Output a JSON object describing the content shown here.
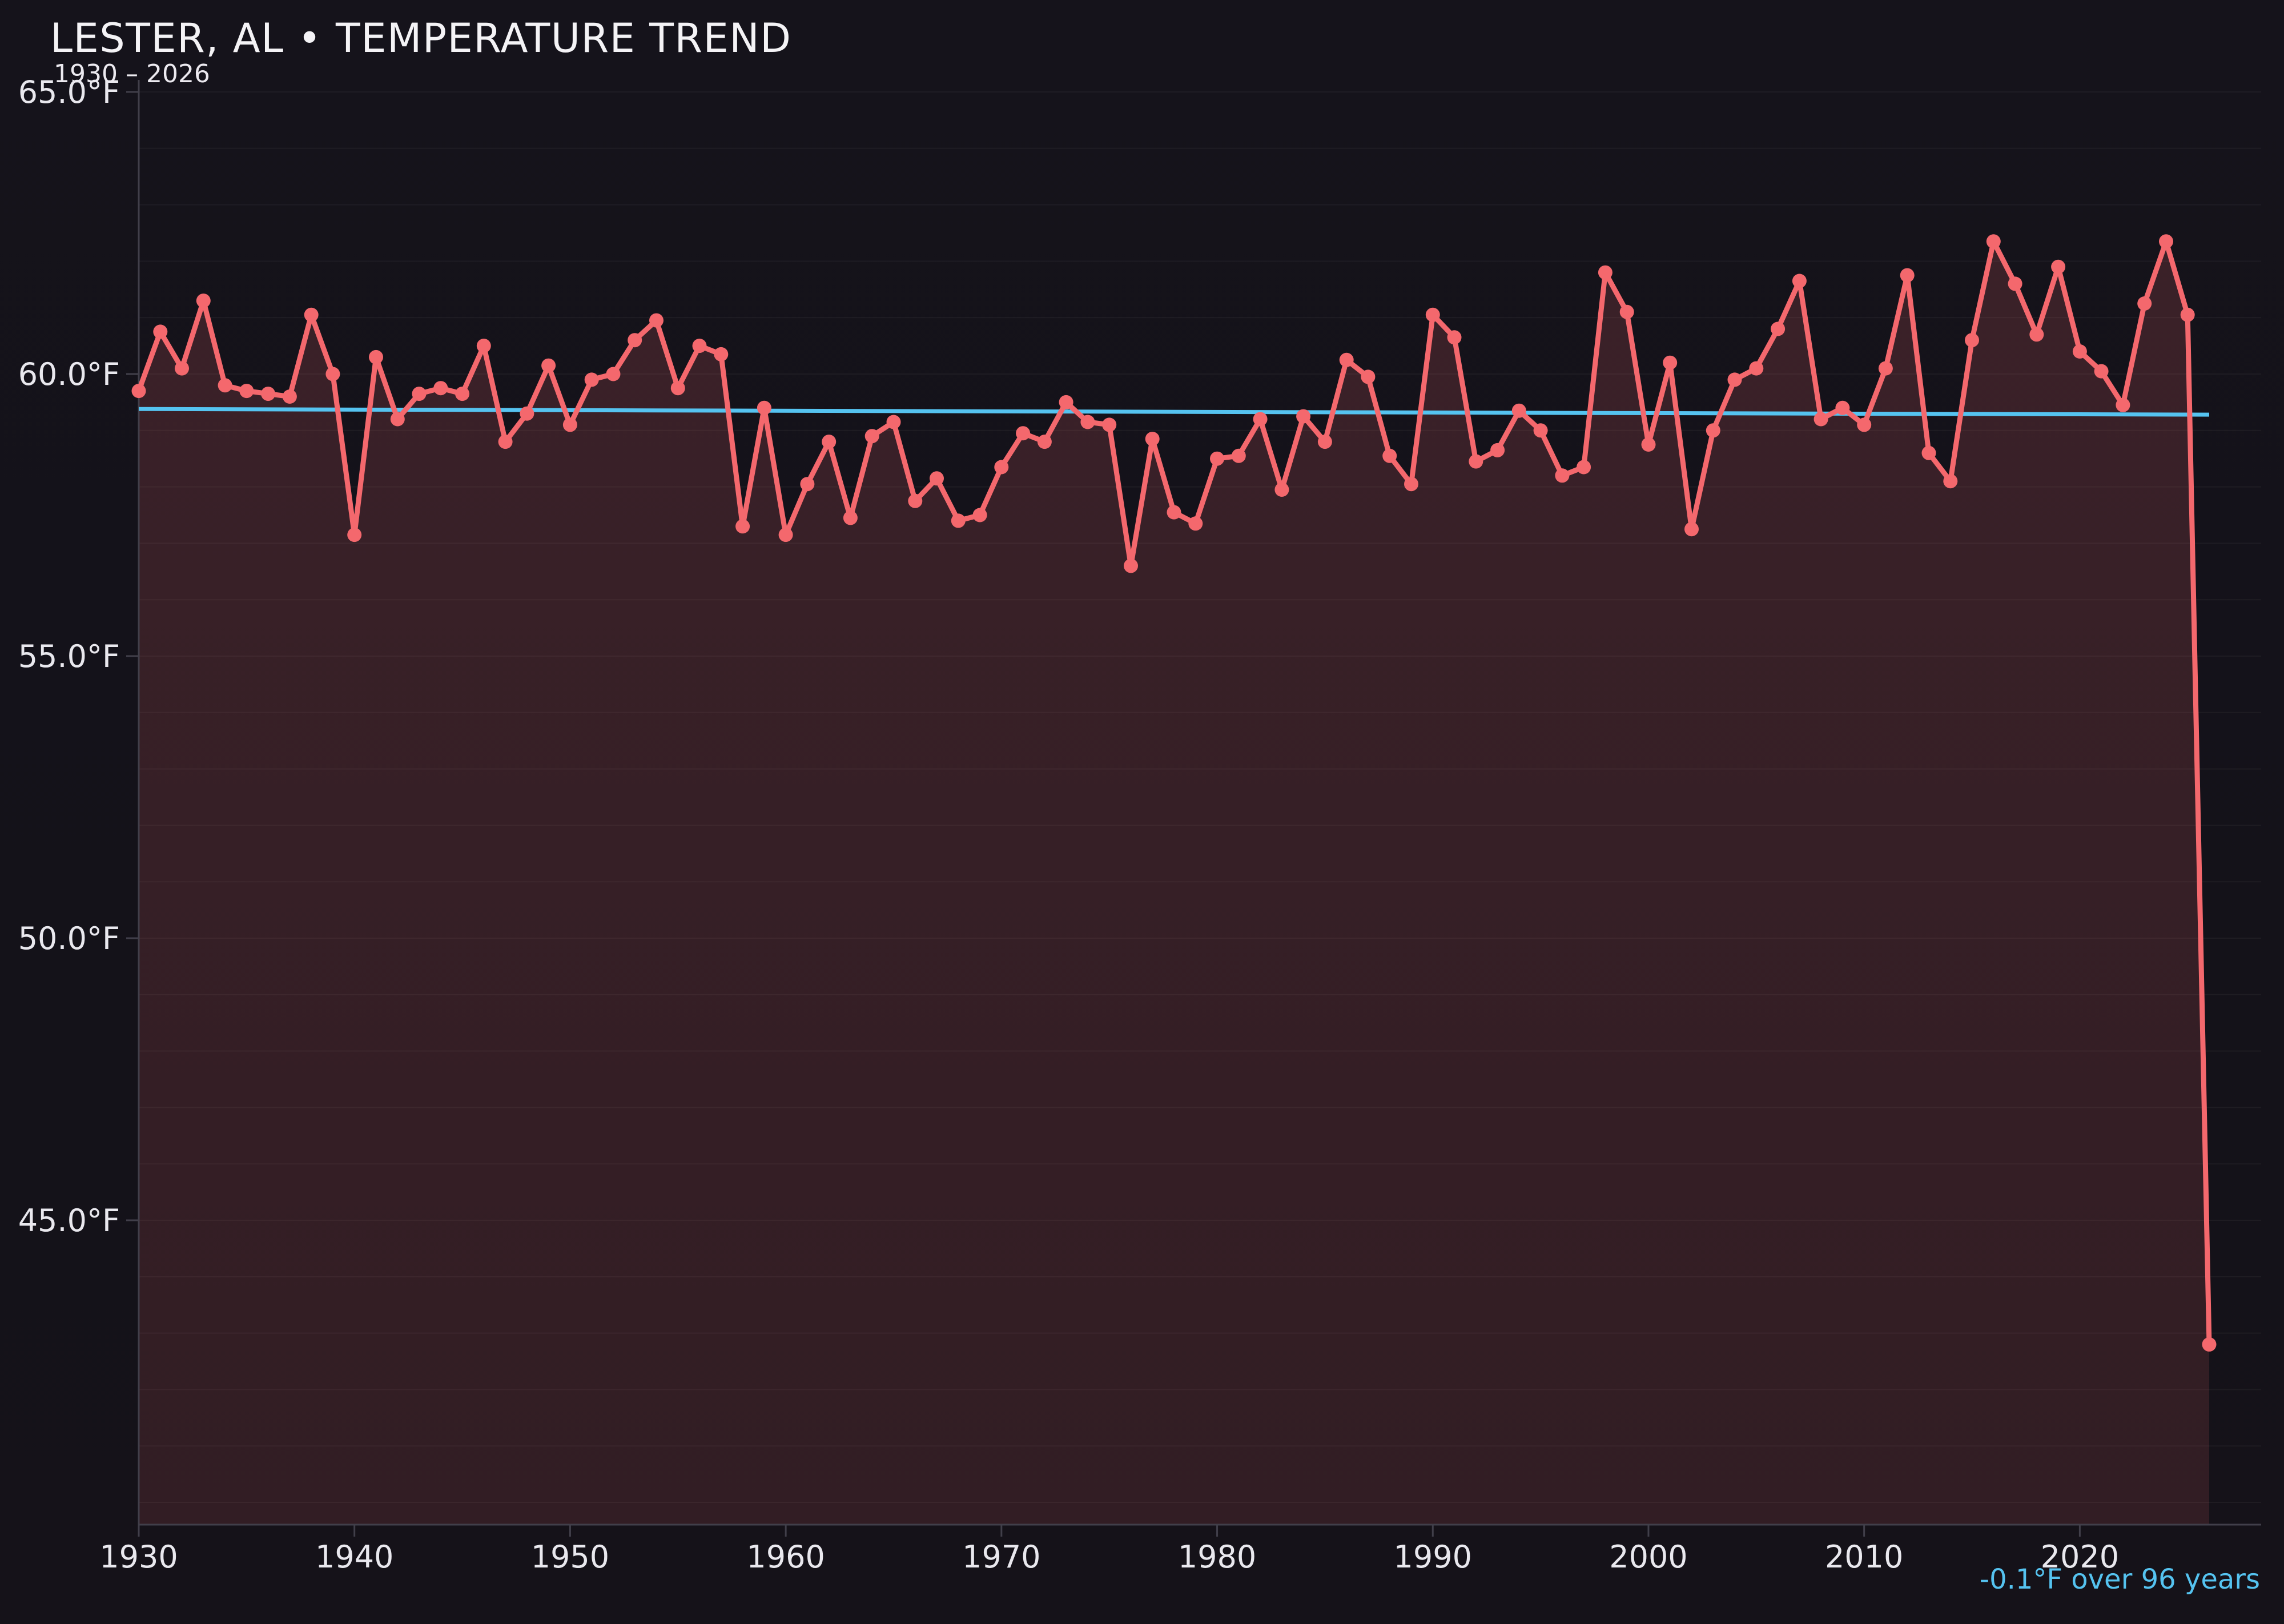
{
  "header": {
    "title": "LESTER, AL • TEMPERATURE TREND",
    "subtitle": "1930 – 2026"
  },
  "colors": {
    "background": "#141219",
    "series_line": "#f4686d",
    "area_fill": "#f4686d",
    "trend_line": "#55c3f0",
    "grid_line": "rgba(255,255,255,0.045)",
    "axis_line": "#413f4a",
    "tick_text": "#e9e8ee",
    "title_text": "#f4f3f6",
    "annotation_text": "#55c3f0"
  },
  "chart_data": {
    "type": "line",
    "title": "LESTER, AL • TEMPERATURE TREND",
    "subtitle": "1930 – 2026",
    "ylabel": "",
    "xlabel": "",
    "unit": "°F",
    "x_start": 1930,
    "x_end": 2026,
    "x_step": 1,
    "values": [
      59.7,
      60.75,
      60.1,
      61.3,
      59.8,
      59.7,
      59.65,
      59.6,
      61.05,
      60.0,
      57.15,
      60.3,
      59.2,
      59.65,
      59.75,
      59.65,
      60.5,
      58.8,
      59.3,
      60.15,
      59.1,
      59.9,
      60.0,
      60.6,
      60.95,
      59.75,
      60.5,
      60.35,
      57.3,
      59.4,
      57.15,
      58.05,
      58.8,
      57.45,
      58.9,
      59.15,
      57.75,
      58.15,
      57.4,
      57.5,
      58.35,
      58.95,
      58.8,
      59.5,
      59.15,
      59.1,
      56.6,
      58.85,
      57.55,
      57.35,
      58.5,
      58.55,
      59.2,
      57.95,
      59.25,
      58.8,
      60.25,
      59.95,
      58.55,
      58.05,
      61.05,
      60.65,
      58.45,
      58.65,
      59.35,
      59.0,
      58.2,
      58.35,
      61.8,
      61.1,
      58.75,
      60.2,
      57.25,
      59.0,
      59.9,
      60.1,
      60.8,
      61.65,
      59.2,
      59.4,
      59.1,
      60.1,
      61.75,
      58.6,
      58.1,
      60.6,
      62.35,
      61.6,
      60.7,
      61.9,
      60.4,
      60.05,
      59.45,
      61.25,
      62.35,
      61.05,
      42.8
    ],
    "x_ticks": [
      1930,
      1940,
      1950,
      1960,
      1970,
      1980,
      1990,
      2000,
      2010,
      2020
    ],
    "y_ticks": [
      65.0,
      60.0,
      55.0,
      50.0,
      45.0
    ],
    "y_tick_suffix": "°F",
    "ylim": [
      39.6,
      65.2
    ],
    "grid": "horizontal, every 1°F, very faint",
    "legend_position": "none",
    "trend": {
      "start_value": 59.38,
      "end_value": 59.28,
      "label": "-0.1°F over 96 years"
    }
  }
}
